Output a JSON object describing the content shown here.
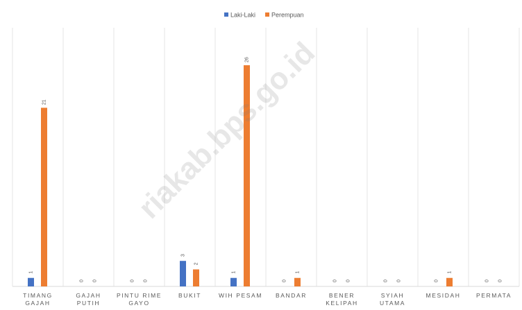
{
  "chart_data": {
    "type": "bar",
    "categories": [
      "TIMANG GAJAH",
      "GAJAH PUTIH",
      "PINTU RIME GAYO",
      "BUKIT",
      "WIH PESAM",
      "BANDAR",
      "BENER KELIPAH",
      "SYIAH UTAMA",
      "MESIDAH",
      "PERMATA"
    ],
    "series": [
      {
        "name": "Laki-Laki",
        "color": "#4472c4",
        "values": [
          1,
          0,
          0,
          3,
          1,
          0,
          0,
          0,
          0,
          0
        ]
      },
      {
        "name": "Perempuan",
        "color": "#ed7d31",
        "values": [
          21,
          0,
          0,
          2,
          26,
          1,
          0,
          0,
          1,
          0
        ]
      }
    ],
    "ylim": [
      0,
      30
    ],
    "watermark": "riakab.bps.go.id"
  }
}
